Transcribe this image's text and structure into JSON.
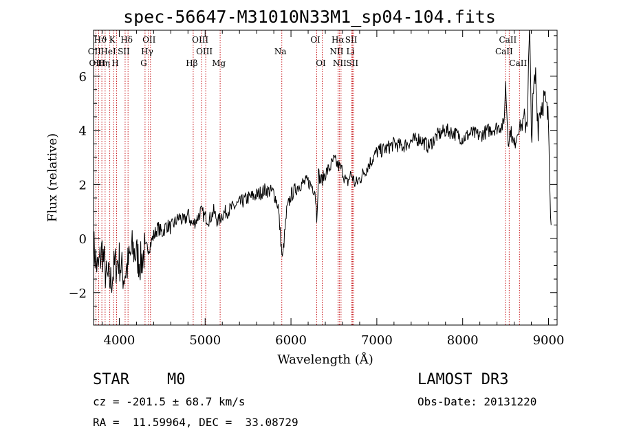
{
  "title": "spec-56647-M31010N33M1_sp04-104.fits",
  "info": {
    "class_label": "STAR",
    "subclass_label": "M0",
    "survey": "LAMOST DR3",
    "cz": "cz = -201.5 ± 68.7 km/s",
    "obs_date": "Obs-Date: 20131220",
    "coords": "RA =  11.59964, DEC =  33.08729"
  },
  "chart_data": {
    "type": "line",
    "title": "spec-56647-M31010N33M1_sp04-104.fits",
    "xlabel": "Wavelength (Å)",
    "ylabel": "Flux (relative)",
    "xlim": [
      3700,
      9100
    ],
    "ylim": [
      -3.2,
      7.7
    ],
    "xticks": [
      4000,
      5000,
      6000,
      7000,
      8000,
      9000
    ],
    "yticks": [
      -2,
      0,
      2,
      4,
      6
    ],
    "series": [
      {
        "name": "flux",
        "x": [
          3700,
          3750,
          3800,
          3850,
          3900,
          3950,
          4000,
          4050,
          4100,
          4150,
          4200,
          4250,
          4300,
          4350,
          4400,
          4450,
          4500,
          4550,
          4600,
          4650,
          4700,
          4750,
          4800,
          4850,
          4900,
          4950,
          5000,
          5050,
          5100,
          5150,
          5200,
          5300,
          5400,
          5500,
          5600,
          5700,
          5800,
          5850,
          5900,
          5950,
          6000,
          6100,
          6200,
          6280,
          6300,
          6320,
          6350,
          6400,
          6450,
          6500,
          6550,
          6600,
          6650,
          6700,
          6750,
          6800,
          6900,
          7000,
          7100,
          7200,
          7300,
          7400,
          7500,
          7600,
          7700,
          7800,
          7900,
          8000,
          8100,
          8200,
          8300,
          8400,
          8480,
          8500,
          8530,
          8560,
          8600,
          8650,
          8700,
          8750,
          8780,
          8800,
          8830,
          8850,
          8880,
          8900,
          8950,
          9000,
          9030
        ],
        "values": [
          -0.3,
          -1.2,
          -0.4,
          -1.5,
          -1.6,
          -1.0,
          -0.8,
          -1.4,
          -1.0,
          -0.4,
          -0.6,
          -0.9,
          -0.4,
          -0.3,
          0.1,
          0.4,
          0.2,
          0.5,
          0.4,
          0.6,
          0.8,
          0.6,
          0.9,
          0.5,
          0.7,
          1.0,
          0.8,
          0.7,
          1.0,
          0.6,
          0.9,
          1.1,
          1.3,
          1.5,
          1.6,
          1.8,
          1.7,
          1.2,
          -0.8,
          1.0,
          1.6,
          2.0,
          2.1,
          1.8,
          0.8,
          2.4,
          2.1,
          2.4,
          2.6,
          2.9,
          2.7,
          2.5,
          2.0,
          2.4,
          2.0,
          2.2,
          2.7,
          3.2,
          3.3,
          3.5,
          3.4,
          3.6,
          3.7,
          3.4,
          3.8,
          4.0,
          3.9,
          3.7,
          3.9,
          3.8,
          4.0,
          4.1,
          4.2,
          5.7,
          3.6,
          4.0,
          3.4,
          4.1,
          4.2,
          4.4,
          7.7,
          3.8,
          5.5,
          6.0,
          4.2,
          4.8,
          5.2,
          4.3,
          0.5
        ]
      }
    ],
    "lines_top": [
      {
        "label": "Hϑ",
        "x": 3797
      },
      {
        "label": "K",
        "x": 3934
      },
      {
        "label": "Hδ",
        "x": 4102
      },
      {
        "label": "OII",
        "x": 4363
      },
      {
        "label": "OIII",
        "x": 4959
      },
      {
        "label": "OI",
        "x": 6300
      },
      {
        "label": "Hα",
        "x": 6563
      },
      {
        "label": "SII",
        "x": 6717
      },
      {
        "label": "CaII",
        "x": 8542
      }
    ],
    "lines_mid": [
      {
        "label": "OII",
        "x": 3727
      },
      {
        "label": "HeI",
        "x": 3889
      },
      {
        "label": "SII",
        "x": 4068
      },
      {
        "label": "Hγ",
        "x": 4341
      },
      {
        "label": "OIII",
        "x": 5007
      },
      {
        "label": "Na",
        "x": 5893
      },
      {
        "label": "NII",
        "x": 6548
      },
      {
        "label": "Li",
        "x": 6708
      },
      {
        "label": "CaII",
        "x": 8498
      }
    ],
    "lines_bot": [
      {
        "label": "OIII",
        "x": 3760
      },
      {
        "label": "Hη",
        "x": 3835
      },
      {
        "label": "H",
        "x": 3968
      },
      {
        "label": "G",
        "x": 4300
      },
      {
        "label": "Hβ",
        "x": 4861
      },
      {
        "label": "Mg",
        "x": 5175
      },
      {
        "label": "OI",
        "x": 6364
      },
      {
        "label": "NII",
        "x": 6583
      },
      {
        "label": "SII",
        "x": 6731
      },
      {
        "label": "CaII",
        "x": 8662
      }
    ]
  }
}
